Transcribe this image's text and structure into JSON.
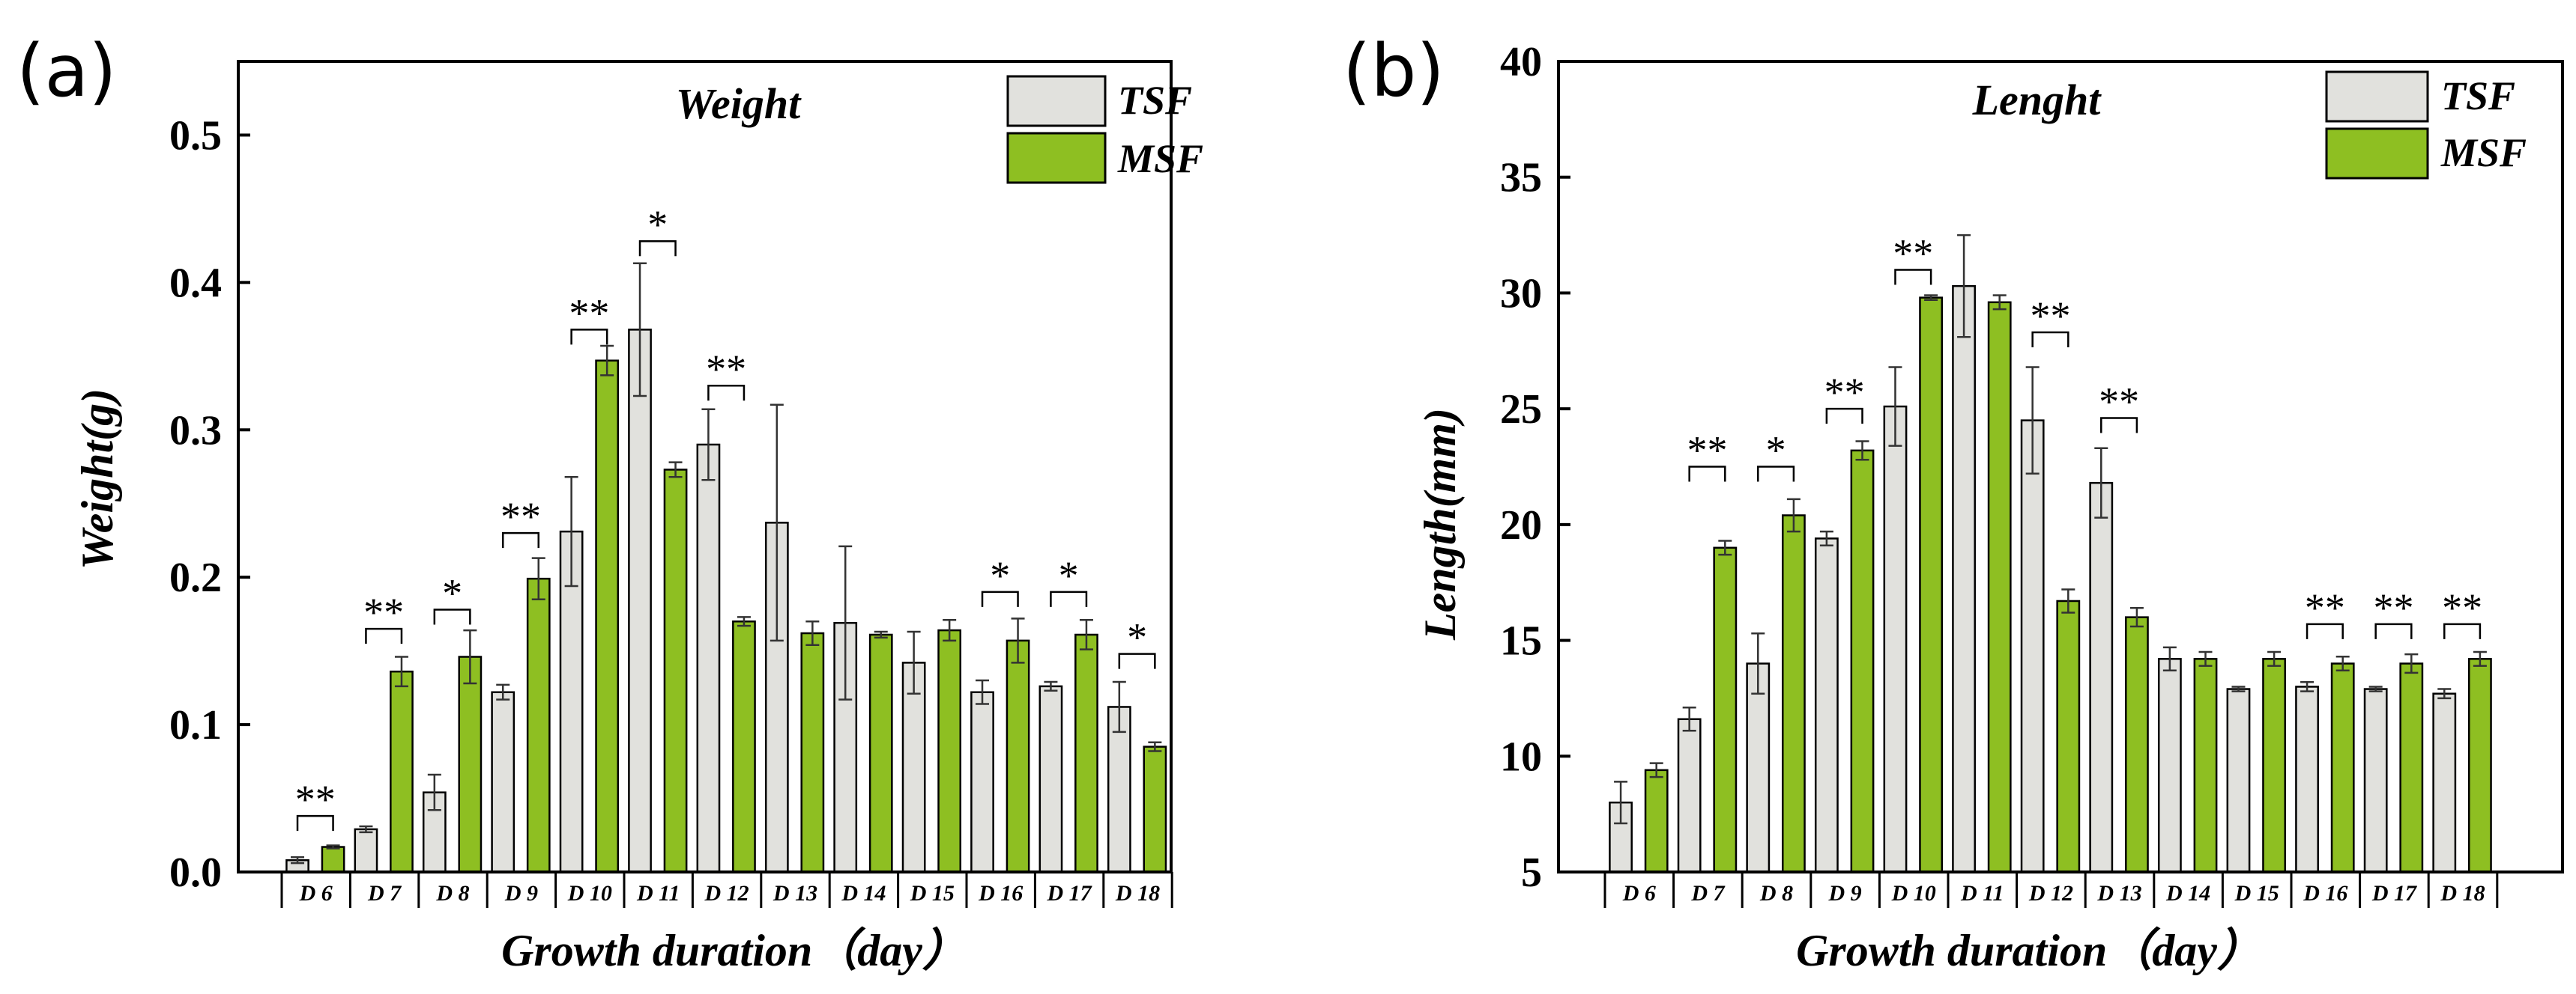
{
  "colors": {
    "tsf": "#e1e1dd",
    "msf": "#8ebf22",
    "stroke": "#000000"
  },
  "chart_data": [
    {
      "panel_label": "(a)",
      "type": "bar",
      "title": "Weight",
      "xlabel": "Growth duration（day）",
      "ylabel": "Weight(g)",
      "ylim": [
        0,
        0.55
      ],
      "yticks": [
        {
          "value": 0.0,
          "label": "0.0"
        },
        {
          "value": 0.1,
          "label": "0.1"
        },
        {
          "value": 0.2,
          "label": "0.2"
        },
        {
          "value": 0.3,
          "label": "0.3"
        },
        {
          "value": 0.4,
          "label": "0.4"
        },
        {
          "value": 0.5,
          "label": "0.5"
        }
      ],
      "categories": [
        "D 6",
        "D 7",
        "D 8",
        "D 9",
        "D 10",
        "D 11",
        "D 12",
        "D 13",
        "D 14",
        "D 15",
        "D 16",
        "D 17",
        "D 18"
      ],
      "series": [
        {
          "name": "TSF",
          "values": [
            0.008,
            0.029,
            0.054,
            0.122,
            0.231,
            0.368,
            0.29,
            0.237,
            0.169,
            0.142,
            0.122,
            0.126,
            0.112
          ],
          "errors": [
            0.002,
            0.002,
            0.012,
            0.005,
            0.037,
            0.045,
            0.024,
            0.08,
            0.052,
            0.021,
            0.008,
            0.003,
            0.017
          ]
        },
        {
          "name": "MSF",
          "values": [
            0.017,
            0.136,
            0.146,
            0.199,
            0.347,
            0.273,
            0.17,
            0.162,
            0.161,
            0.164,
            0.157,
            0.161,
            0.085
          ],
          "errors": [
            0.001,
            0.01,
            0.018,
            0.014,
            0.01,
            0.005,
            0.003,
            0.008,
            0.002,
            0.007,
            0.015,
            0.01,
            0.003
          ]
        }
      ],
      "significance": [
        {
          "index": 0,
          "label": "**",
          "y": 0.038
        },
        {
          "index": 1,
          "label": "**",
          "y": 0.165
        },
        {
          "index": 2,
          "label": "*",
          "y": 0.178
        },
        {
          "index": 3,
          "label": "**",
          "y": 0.23
        },
        {
          "index": 4,
          "label": "**",
          "y": 0.368
        },
        {
          "index": 5,
          "label": "*",
          "y": 0.428
        },
        {
          "index": 6,
          "label": "**",
          "y": 0.33
        },
        {
          "index": 10,
          "label": "*",
          "y": 0.19
        },
        {
          "index": 11,
          "label": "*",
          "y": 0.19
        },
        {
          "index": 12,
          "label": "*",
          "y": 0.148
        }
      ]
    },
    {
      "panel_label": "(b)",
      "type": "bar",
      "title": "Lenght",
      "xlabel": "Growth duration（day）",
      "ylabel": "Length(mm)",
      "ylim": [
        5,
        40
      ],
      "yticks": [
        {
          "value": 5,
          "label": "5"
        },
        {
          "value": 10,
          "label": "10"
        },
        {
          "value": 15,
          "label": "15"
        },
        {
          "value": 20,
          "label": "20"
        },
        {
          "value": 25,
          "label": "25"
        },
        {
          "value": 30,
          "label": "30"
        },
        {
          "value": 35,
          "label": "35"
        },
        {
          "value": 40,
          "label": "40"
        }
      ],
      "categories": [
        "D 6",
        "D 7",
        "D 8",
        "D 9",
        "D 10",
        "D 11",
        "D 12",
        "D 13",
        "D 14",
        "D 15",
        "D 16",
        "D 17",
        "D 18"
      ],
      "series": [
        {
          "name": "TSF",
          "values": [
            8.0,
            11.6,
            14.0,
            19.4,
            25.1,
            30.3,
            24.5,
            21.8,
            14.2,
            12.9,
            13.0,
            12.9,
            12.7
          ],
          "errors": [
            0.9,
            0.5,
            1.3,
            0.3,
            1.7,
            2.2,
            2.3,
            1.5,
            0.5,
            0.1,
            0.2,
            0.1,
            0.2
          ]
        },
        {
          "name": "MSF",
          "values": [
            9.4,
            19.0,
            20.4,
            23.2,
            29.8,
            29.6,
            16.7,
            16.0,
            14.2,
            14.2,
            14.0,
            14.0,
            14.2
          ],
          "errors": [
            0.3,
            0.3,
            0.7,
            0.4,
            0.1,
            0.3,
            0.5,
            0.4,
            0.3,
            0.3,
            0.3,
            0.4,
            0.3
          ]
        }
      ],
      "significance": [
        {
          "index": 1,
          "label": "**",
          "y": 22.5
        },
        {
          "index": 2,
          "label": "*",
          "y": 22.5
        },
        {
          "index": 3,
          "label": "**",
          "y": 25.0
        },
        {
          "index": 4,
          "label": "**",
          "y": 31.0
        },
        {
          "index": 6,
          "label": "**",
          "y": 28.3
        },
        {
          "index": 7,
          "label": "**",
          "y": 24.6
        },
        {
          "index": 10,
          "label": "**",
          "y": 15.7
        },
        {
          "index": 11,
          "label": "**",
          "y": 15.7
        },
        {
          "index": 12,
          "label": "**",
          "y": 15.7
        }
      ]
    }
  ]
}
